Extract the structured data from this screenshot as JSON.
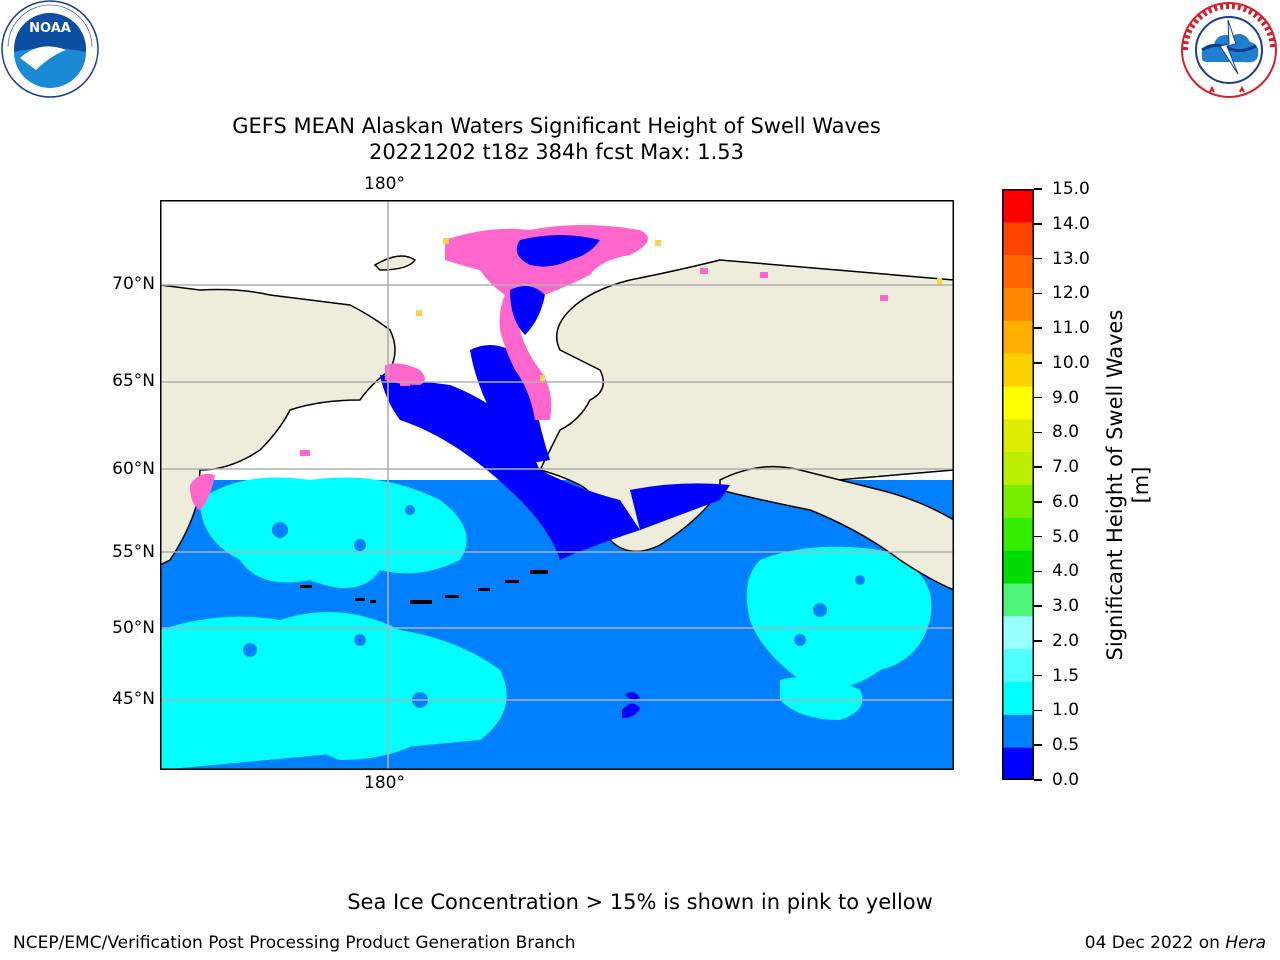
{
  "title": {
    "line1": "GEFS MEAN Alaskan Waters Significant Height of Swell Waves",
    "line2": "20221202 t18z 384h fcst   Max: 1.53"
  },
  "logos": {
    "noaa": {
      "text": "NOAA",
      "ring_text": "NATIONAL OCEANIC AND ATMOSPHERIC ADMINISTRATION · U.S. DEPARTMENT OF COMMERCE"
    },
    "nws": {
      "ring_text": "NATIONAL WEATHER SERVICE"
    }
  },
  "map": {
    "lon_label": "180°",
    "lat_labels": [
      "70°N",
      "65°N",
      "60°N",
      "55°N",
      "50°N",
      "45°N"
    ],
    "colors": {
      "ocean": "#0080ff",
      "land": "#eeeddb",
      "calm": "#0000ff",
      "swell": "#00ffff",
      "ice": "#ff66cc",
      "ice_edge": "#ffd24d"
    }
  },
  "colorbar": {
    "label": "Significant Height of Swell Waves [m]",
    "ticks": [
      "15.0",
      "14.0",
      "13.0",
      "12.0",
      "11.0",
      "10.0",
      "9.0",
      "8.0",
      "7.0",
      "6.0",
      "5.0",
      "4.0",
      "3.0",
      "2.0",
      "1.5",
      "1.0",
      "0.5",
      "0.0"
    ],
    "colors": [
      "#0000ff",
      "#0080ff",
      "#00ffff",
      "#4dffff",
      "#99ffff",
      "#4df57a",
      "#00dd00",
      "#33ee00",
      "#77ee00",
      "#bbee00",
      "#dded00",
      "#ffff00",
      "#ffd000",
      "#ffb000",
      "#ff8800",
      "#ff6600",
      "#ff4400",
      "#ff0000"
    ]
  },
  "ice_note": "Sea Ice Concentration > 15% is shown in pink to yellow",
  "footer": {
    "left": "NCEP/EMC/Verification Post Processing Product Generation Branch",
    "date": "04 Dec 2022 on ",
    "machine": "Hera"
  }
}
